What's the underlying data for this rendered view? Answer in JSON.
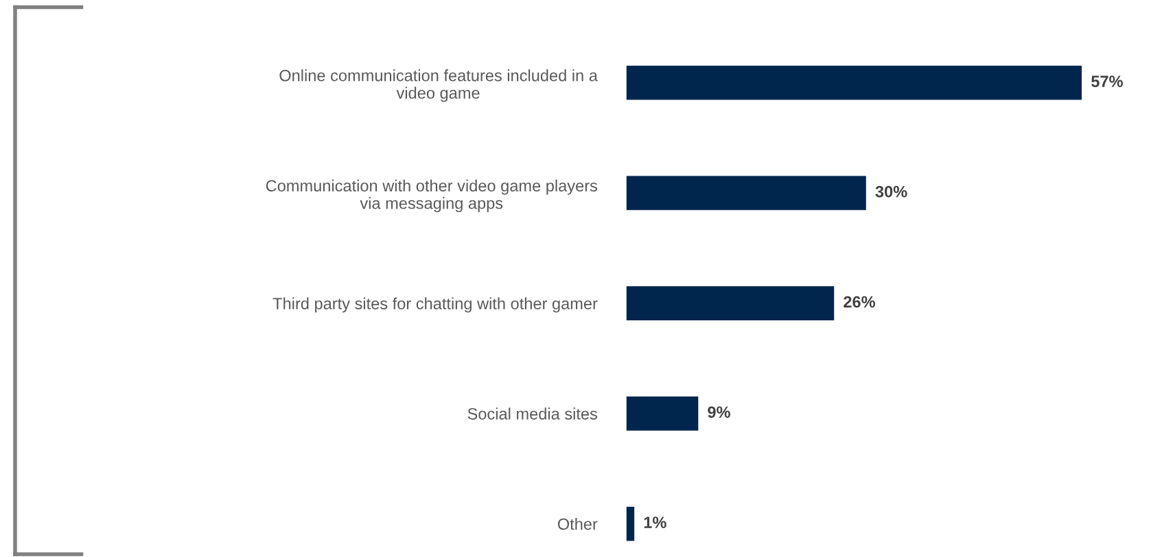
{
  "chart_data": {
    "type": "bar",
    "orientation": "horizontal",
    "categories": [
      "Online communication features included in a\nvideo game",
      "Communication with other video game players\nvia messaging apps",
      "Third party sites for chatting with other gamer",
      "Social media sites",
      "Other"
    ],
    "values": [
      57,
      30,
      26,
      9,
      1
    ],
    "value_labels": [
      "57%",
      "30%",
      "26%",
      "9%",
      "1%"
    ],
    "color": "#00264d"
  }
}
